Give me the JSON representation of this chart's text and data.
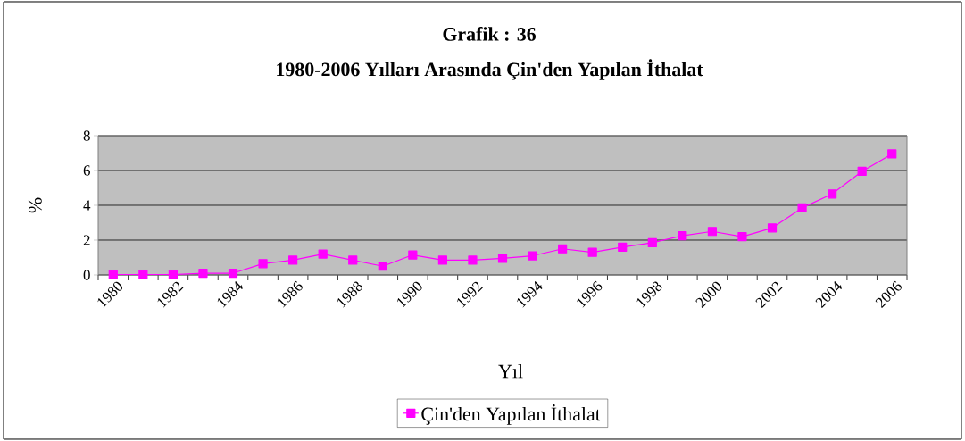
{
  "chart_data": {
    "type": "line",
    "title": "Grafik : 36",
    "subtitle": "1980-2006 Yılları Arasında Çin'den Yapılan İthalat",
    "xlabel": "Yıl",
    "ylabel": "%",
    "categories": [
      "1980",
      null,
      "1982",
      null,
      "1984",
      null,
      "1986",
      null,
      "1988",
      null,
      "1990",
      null,
      "1992",
      null,
      "1994",
      null,
      "1996",
      null,
      "1998",
      null,
      "2000",
      null,
      "2002",
      null,
      "2004",
      null,
      "2006"
    ],
    "series": [
      {
        "name": "Çin'den Yapılan İthalat",
        "color": "#ff00ff",
        "values": [
          0.02,
          0.02,
          0.02,
          0.1,
          0.1,
          0.65,
          0.85,
          1.2,
          0.85,
          0.5,
          1.15,
          0.85,
          0.85,
          0.95,
          1.1,
          1.5,
          1.3,
          1.6,
          1.85,
          2.25,
          2.5,
          2.2,
          2.7,
          3.85,
          4.65,
          5.95,
          6.95
        ]
      }
    ],
    "ylim": [
      0,
      8
    ],
    "yticks": [
      0,
      2,
      4,
      6,
      8
    ],
    "grid": "y",
    "legend": "bottom",
    "marker": "square",
    "line_style": "solid"
  }
}
